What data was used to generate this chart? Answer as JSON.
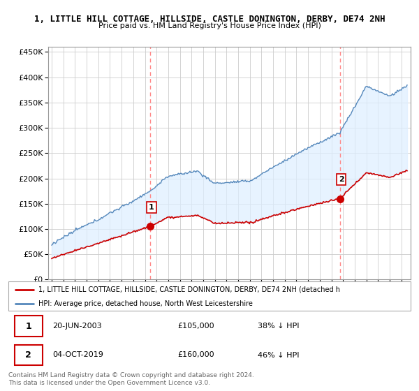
{
  "title": "1, LITTLE HILL COTTAGE, HILLSIDE, CASTLE DONINGTON, DERBY, DE74 2NH",
  "subtitle": "Price paid vs. HM Land Registry's House Price Index (HPI)",
  "yticks": [
    0,
    50000,
    100000,
    150000,
    200000,
    250000,
    300000,
    350000,
    400000,
    450000
  ],
  "ylim_max": 460000,
  "xlim_start": 1994.7,
  "xlim_end": 2025.8,
  "sale1_x": 2003.47,
  "sale1_y": 105000,
  "sale2_x": 2019.75,
  "sale2_y": 160000,
  "property_color": "#cc0000",
  "hpi_color": "#5588bb",
  "hpi_fill_color": "#ddeeff",
  "vline_color": "#ff8888",
  "grid_color": "#cccccc",
  "legend_line1": "1, LITTLE HILL COTTAGE, HILLSIDE, CASTLE DONINGTON, DERBY, DE74 2NH (detached h",
  "legend_line2": "HPI: Average price, detached house, North West Leicestershire",
  "annotation1_date": "20-JUN-2003",
  "annotation1_price": "£105,000",
  "annotation1_hpi": "38% ↓ HPI",
  "annotation2_date": "04-OCT-2019",
  "annotation2_price": "£160,000",
  "annotation2_hpi": "46% ↓ HPI",
  "footer": "Contains HM Land Registry data © Crown copyright and database right 2024.\nThis data is licensed under the Open Government Licence v3.0."
}
